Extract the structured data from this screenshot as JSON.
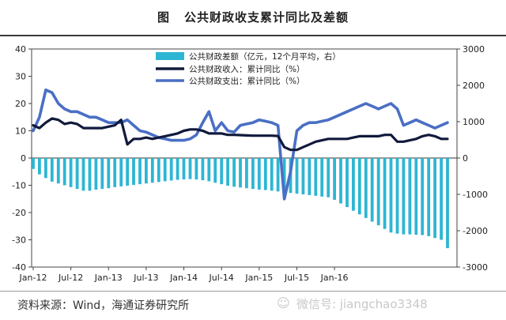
{
  "figure": {
    "label": "图",
    "title": "公共财政收支累计同比及差额",
    "source": "资料来源：Wind，海通证券研究所",
    "watermark": "微信号: jiangchao3348"
  },
  "colors": {
    "bars": "#2db6d3",
    "revenue": "#111a3c",
    "expenditure": "#4a6fc4"
  },
  "chart_data": {
    "type": "bar+line",
    "x_tick_labels": [
      "Jan-12",
      "Jul-12",
      "Jan-13",
      "Jul-13",
      "Jan-14",
      "Jul-14",
      "Jan-15",
      "Jul-15",
      "Jan-16"
    ],
    "left_axis": {
      "ticks": [
        "40",
        "30",
        "20",
        "10",
        "0",
        "-10",
        "-20",
        "-30",
        "-40"
      ],
      "range": [
        -40,
        40
      ]
    },
    "right_axis": {
      "ticks": [
        "3000",
        "2000",
        "1000",
        "0",
        "-1000",
        "-2000",
        "-3000"
      ],
      "range": [
        -3000,
        3000
      ]
    },
    "legend": {
      "position": "top-center",
      "items": [
        "公共财政差额（亿元，12个月平均，右）",
        "公共财政收入：累计同比（%）",
        "公共财政支出：累计同比（%）"
      ]
    },
    "series": [
      {
        "name": "公共财政差额（亿元，12个月平均，右）",
        "axis": "right",
        "type": "bar",
        "values": [
          -300,
          -450,
          -550,
          -650,
          -700,
          -750,
          -800,
          -850,
          -900,
          -900,
          -870,
          -850,
          -830,
          -800,
          -780,
          -760,
          -740,
          -720,
          -700,
          -680,
          -660,
          -640,
          -620,
          -600,
          -590,
          -580,
          -590,
          -610,
          -640,
          -680,
          -720,
          -760,
          -790,
          -810,
          -830,
          -850,
          -870,
          -880,
          -900,
          -920,
          -940,
          -960,
          -980,
          -1000,
          -1020,
          -1040,
          -1060,
          -1080,
          -1150,
          -1250,
          -1350,
          -1450,
          -1550,
          -1650,
          -1750,
          -1850,
          -1950,
          -2050,
          -2080,
          -2100,
          -2100,
          -2110,
          -2120,
          -2150,
          -2200,
          -2250,
          -2480
        ]
      },
      {
        "name": "公共财政收入：累计同比（%）",
        "axis": "left",
        "type": "line",
        "points": [
          [
            0,
            12
          ],
          [
            1,
            11
          ],
          [
            2,
            13
          ],
          [
            3,
            14.5
          ],
          [
            4,
            14
          ],
          [
            5,
            12.5
          ],
          [
            6,
            13
          ],
          [
            7,
            12.5
          ],
          [
            8,
            11
          ],
          [
            9,
            11
          ],
          [
            10,
            11
          ],
          [
            11,
            11
          ],
          [
            12,
            11.5
          ],
          [
            13,
            12
          ],
          [
            14,
            14
          ],
          [
            15,
            5
          ],
          [
            16,
            7
          ],
          [
            17,
            7
          ],
          [
            18,
            7.5
          ],
          [
            19,
            7
          ],
          [
            20,
            7.5
          ],
          [
            21,
            8
          ],
          [
            22,
            8.5
          ],
          [
            23,
            9
          ],
          [
            24,
            10
          ],
          [
            25,
            10.5
          ],
          [
            26,
            10.5
          ],
          [
            27,
            10
          ],
          [
            28,
            9
          ],
          [
            29,
            9
          ],
          [
            30,
            9
          ],
          [
            31,
            8.5
          ],
          [
            32,
            8.5
          ],
          [
            33,
            8.4
          ],
          [
            34,
            8.3
          ],
          [
            35,
            8.2
          ],
          [
            36,
            8.2
          ],
          [
            37,
            8.2
          ],
          [
            38,
            8.2
          ],
          [
            39,
            8.1
          ],
          [
            40,
            4
          ],
          [
            41,
            3
          ],
          [
            42,
            3
          ],
          [
            43,
            4
          ],
          [
            44,
            5
          ],
          [
            45,
            6
          ],
          [
            46,
            6.5
          ],
          [
            47,
            7
          ],
          [
            48,
            7
          ],
          [
            49,
            7
          ],
          [
            50,
            7
          ],
          [
            51,
            7.5
          ],
          [
            52,
            8
          ],
          [
            53,
            8
          ],
          [
            54,
            8
          ],
          [
            55,
            8
          ],
          [
            56,
            8.5
          ],
          [
            57,
            8.5
          ],
          [
            58,
            6
          ],
          [
            59,
            6
          ],
          [
            60,
            6.5
          ],
          [
            61,
            7
          ],
          [
            62,
            8
          ],
          [
            63,
            8.5
          ],
          [
            64,
            8
          ],
          [
            65,
            7
          ],
          [
            66,
            7
          ]
        ]
      },
      {
        "name": "公共财政支出：累计同比（%）",
        "axis": "left",
        "type": "line",
        "points": [
          [
            0,
            10
          ],
          [
            1,
            15
          ],
          [
            2,
            25
          ],
          [
            3,
            24
          ],
          [
            4,
            20
          ],
          [
            5,
            18
          ],
          [
            6,
            17
          ],
          [
            7,
            17
          ],
          [
            8,
            16
          ],
          [
            9,
            15
          ],
          [
            10,
            15
          ],
          [
            11,
            14
          ],
          [
            12,
            13
          ],
          [
            13,
            13
          ],
          [
            14,
            13
          ],
          [
            15,
            14
          ],
          [
            16,
            12
          ],
          [
            17,
            10
          ],
          [
            18,
            9.5
          ],
          [
            19,
            8.5
          ],
          [
            20,
            7.5
          ],
          [
            21,
            7
          ],
          [
            22,
            6.5
          ],
          [
            23,
            6.5
          ],
          [
            24,
            6.5
          ],
          [
            25,
            7
          ],
          [
            26,
            8.5
          ],
          [
            27,
            13
          ],
          [
            28,
            17
          ],
          [
            29,
            10
          ],
          [
            30,
            13
          ],
          [
            31,
            10
          ],
          [
            32,
            9.5
          ],
          [
            33,
            12
          ],
          [
            34,
            12.5
          ],
          [
            35,
            13
          ],
          [
            36,
            14
          ],
          [
            37,
            13.5
          ],
          [
            38,
            13
          ],
          [
            39,
            12
          ],
          [
            40,
            -15
          ],
          [
            41,
            -5
          ],
          [
            42,
            10
          ],
          [
            43,
            12
          ],
          [
            44,
            13
          ],
          [
            45,
            13
          ],
          [
            46,
            13.5
          ],
          [
            47,
            14
          ],
          [
            48,
            15
          ],
          [
            49,
            16
          ],
          [
            50,
            17
          ],
          [
            51,
            18
          ],
          [
            52,
            19
          ],
          [
            53,
            20
          ],
          [
            54,
            19
          ],
          [
            55,
            18
          ],
          [
            56,
            19
          ],
          [
            57,
            20
          ],
          [
            58,
            18
          ],
          [
            59,
            12
          ],
          [
            60,
            13
          ],
          [
            61,
            14
          ],
          [
            62,
            13
          ],
          [
            63,
            12
          ],
          [
            64,
            11
          ],
          [
            65,
            12
          ],
          [
            66,
            13
          ]
        ]
      }
    ]
  }
}
